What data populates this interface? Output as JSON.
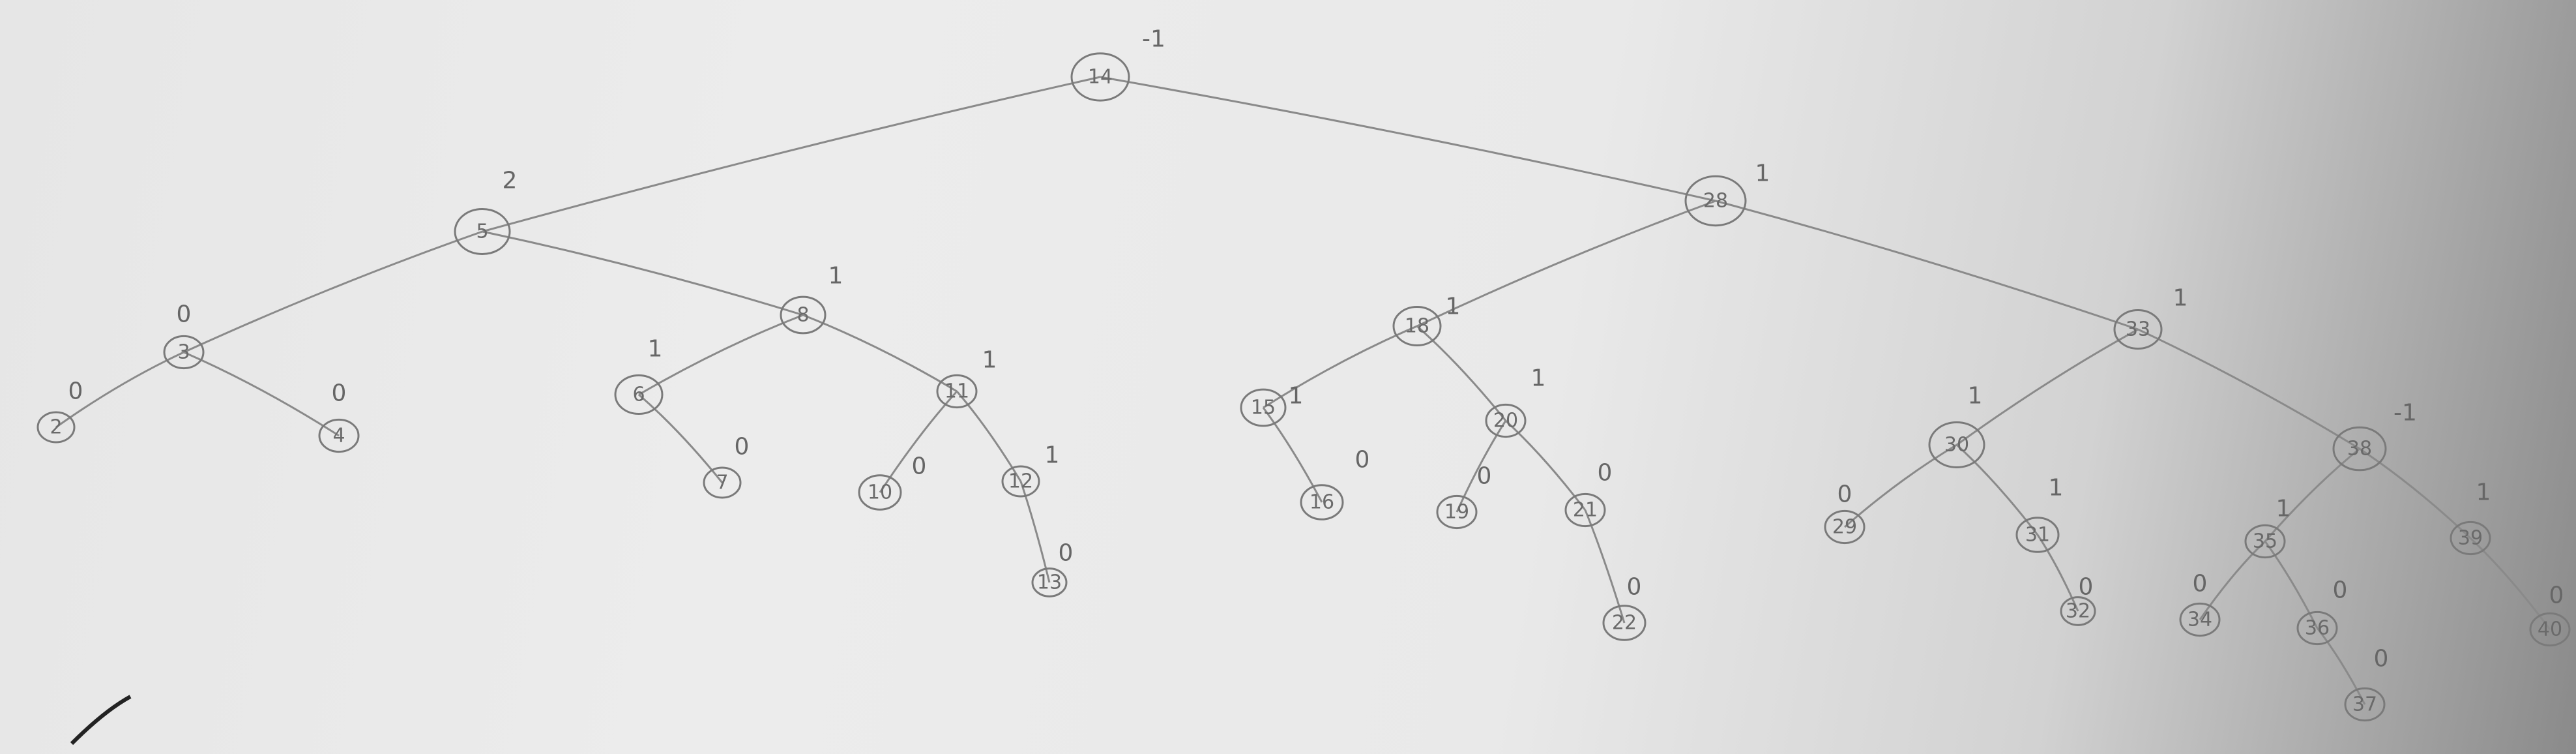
{
  "diagram": {
    "type": "binary-tree",
    "nodes": [
      {
        "id": "n14",
        "key": "14",
        "bf": "-1",
        "parent": null
      },
      {
        "id": "n5",
        "key": "5",
        "bf": "2",
        "parent": "n14"
      },
      {
        "id": "n3",
        "key": "3",
        "bf": "0",
        "parent": "n5"
      },
      {
        "id": "n2",
        "key": "2",
        "bf": "0",
        "parent": "n3"
      },
      {
        "id": "n4",
        "key": "4",
        "bf": "0",
        "parent": "n3"
      },
      {
        "id": "n8",
        "key": "8",
        "bf": "1",
        "parent": "n5"
      },
      {
        "id": "n6",
        "key": "6",
        "bf": "1",
        "parent": "n8"
      },
      {
        "id": "n7",
        "key": "7",
        "bf": "0",
        "parent": "n6"
      },
      {
        "id": "n11",
        "key": "11",
        "bf": "1",
        "parent": "n8"
      },
      {
        "id": "n10",
        "key": "10",
        "bf": "0",
        "parent": "n11"
      },
      {
        "id": "n12",
        "key": "12",
        "bf": "1",
        "parent": "n11"
      },
      {
        "id": "n13",
        "key": "13",
        "bf": "0",
        "parent": "n12"
      },
      {
        "id": "n28",
        "key": "28",
        "bf": "1",
        "parent": "n14"
      },
      {
        "id": "n18",
        "key": "18",
        "bf": "1",
        "parent": "n28"
      },
      {
        "id": "n15",
        "key": "15",
        "bf": "1",
        "parent": "n18"
      },
      {
        "id": "n16",
        "key": "16",
        "bf": "0",
        "parent": "n15"
      },
      {
        "id": "n20",
        "key": "20",
        "bf": "1",
        "parent": "n18"
      },
      {
        "id": "n19",
        "key": "19",
        "bf": "0",
        "parent": "n20"
      },
      {
        "id": "n21",
        "key": "21",
        "bf": "0",
        "parent": "n20"
      },
      {
        "id": "n22",
        "key": "22",
        "bf": "0",
        "parent": "n21"
      },
      {
        "id": "n33",
        "key": "33",
        "bf": "1",
        "parent": "n28"
      },
      {
        "id": "n30",
        "key": "30",
        "bf": "1",
        "parent": "n33"
      },
      {
        "id": "n29",
        "key": "29",
        "bf": "0",
        "parent": "n30"
      },
      {
        "id": "n31",
        "key": "31",
        "bf": "1",
        "parent": "n30"
      },
      {
        "id": "n32",
        "key": "32",
        "bf": "0",
        "parent": "n31"
      },
      {
        "id": "n38",
        "key": "38",
        "bf": "-1",
        "parent": "n33"
      },
      {
        "id": "n35",
        "key": "35",
        "bf": "1",
        "parent": "n38"
      },
      {
        "id": "n34",
        "key": "34",
        "bf": "0",
        "parent": "n35"
      },
      {
        "id": "n36",
        "key": "36",
        "bf": "0",
        "parent": "n35"
      },
      {
        "id": "n37",
        "key": "37",
        "bf": "0",
        "parent": "n36"
      },
      {
        "id": "n39",
        "key": "39",
        "bf": "1",
        "parent": "n38"
      },
      {
        "id": "n40",
        "key": "40",
        "bf": "0",
        "parent": "n39"
      }
    ]
  }
}
